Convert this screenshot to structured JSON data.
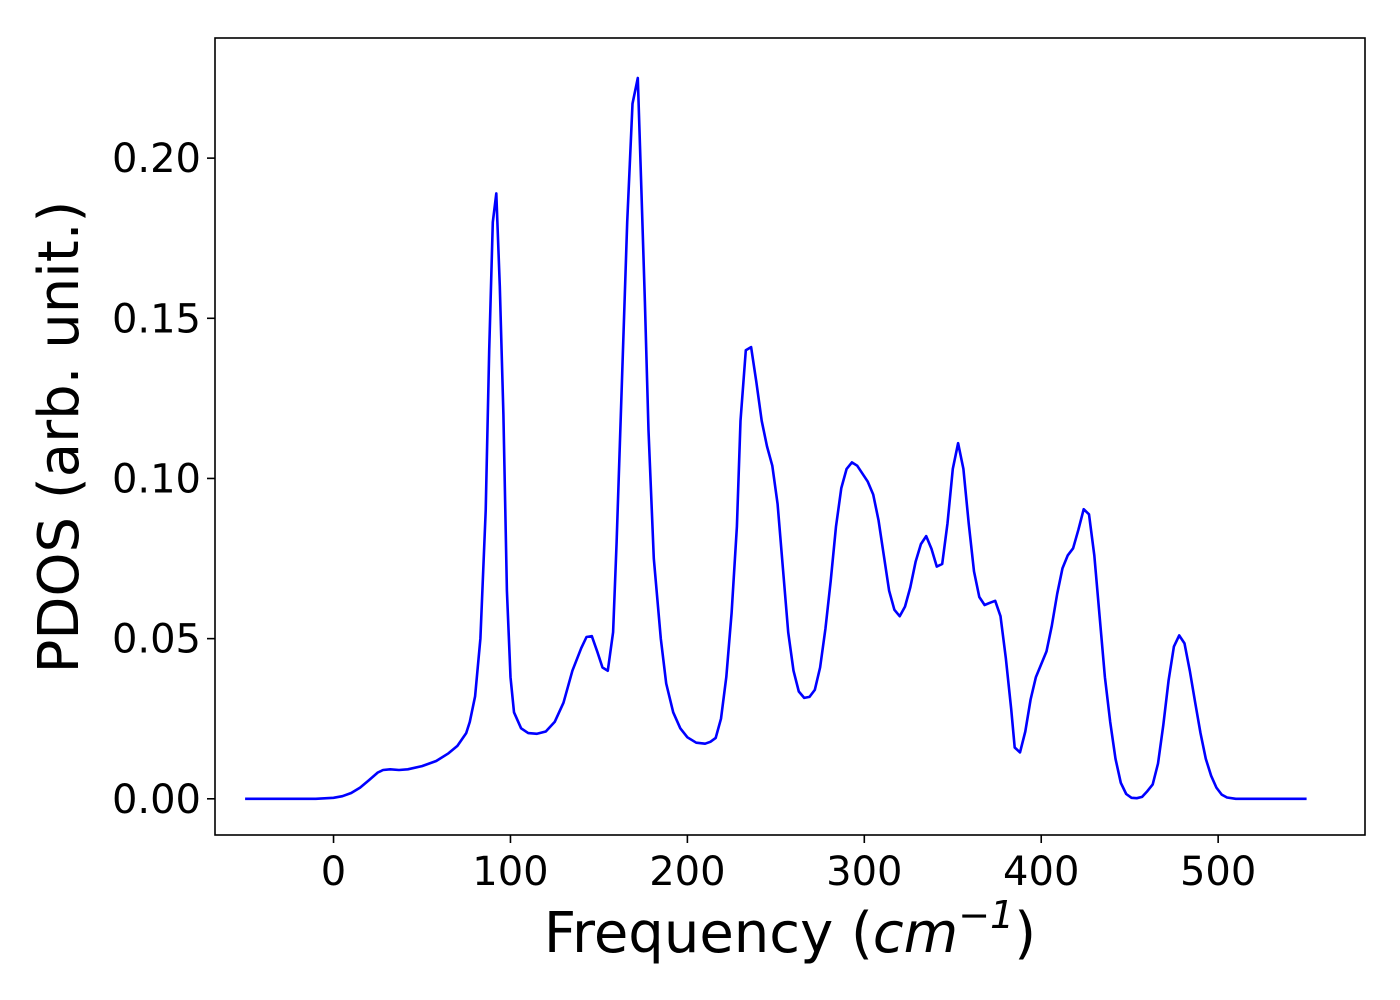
{
  "chart_data": {
    "type": "line",
    "xlabel": "Frequency (cm⁻¹)",
    "xlabel_parts": {
      "prefix": "Frequency (",
      "unit_base": "cm",
      "unit_exp": "−1",
      "suffix": ")"
    },
    "ylabel": "PDOS (arb. unit.)",
    "xlim": [
      -67,
      583
    ],
    "ylim": [
      -0.0113,
      0.2375
    ],
    "x_ticks": [
      0,
      100,
      200,
      300,
      400,
      500
    ],
    "x_tick_labels": [
      "0",
      "100",
      "200",
      "300",
      "400",
      "500"
    ],
    "y_ticks": [
      0.0,
      0.05,
      0.1,
      0.15,
      0.2
    ],
    "y_tick_labels": [
      "0.00",
      "0.05",
      "0.10",
      "0.15",
      "0.20"
    ],
    "grid": false,
    "legend": null,
    "series": [
      {
        "color": "#0000ff",
        "points": [
          [
            -50,
            0.0
          ],
          [
            -40,
            0.0
          ],
          [
            -30,
            0.0
          ],
          [
            -20,
            0.0
          ],
          [
            -10,
            0.0
          ],
          [
            0,
            0.0003
          ],
          [
            5,
            0.0008
          ],
          [
            10,
            0.0018
          ],
          [
            15,
            0.0035
          ],
          [
            20,
            0.0058
          ],
          [
            25,
            0.0082
          ],
          [
            28,
            0.009
          ],
          [
            32,
            0.0092
          ],
          [
            37,
            0.009
          ],
          [
            42,
            0.0092
          ],
          [
            50,
            0.0102
          ],
          [
            58,
            0.0118
          ],
          [
            65,
            0.0142
          ],
          [
            70,
            0.0165
          ],
          [
            75,
            0.0205
          ],
          [
            77,
            0.024
          ],
          [
            80,
            0.032
          ],
          [
            83,
            0.05
          ],
          [
            86,
            0.09
          ],
          [
            88,
            0.14
          ],
          [
            90,
            0.18
          ],
          [
            92,
            0.189
          ],
          [
            94,
            0.16
          ],
          [
            96,
            0.12
          ],
          [
            98,
            0.065
          ],
          [
            100,
            0.038
          ],
          [
            102,
            0.027
          ],
          [
            106,
            0.022
          ],
          [
            110,
            0.0205
          ],
          [
            115,
            0.0203
          ],
          [
            120,
            0.021
          ],
          [
            125,
            0.024
          ],
          [
            130,
            0.03
          ],
          [
            135,
            0.04
          ],
          [
            140,
            0.047
          ],
          [
            143,
            0.0505
          ],
          [
            146,
            0.0508
          ],
          [
            149,
            0.046
          ],
          [
            152,
            0.041
          ],
          [
            155,
            0.04
          ],
          [
            158,
            0.052
          ],
          [
            160,
            0.08
          ],
          [
            163,
            0.13
          ],
          [
            166,
            0.18
          ],
          [
            169,
            0.217
          ],
          [
            172,
            0.225
          ],
          [
            174,
            0.19
          ],
          [
            176,
            0.155
          ],
          [
            178,
            0.115
          ],
          [
            181,
            0.075
          ],
          [
            185,
            0.05
          ],
          [
            188,
            0.036
          ],
          [
            192,
            0.027
          ],
          [
            196,
            0.022
          ],
          [
            200,
            0.0192
          ],
          [
            205,
            0.0175
          ],
          [
            210,
            0.0172
          ],
          [
            213,
            0.0178
          ],
          [
            216,
            0.019
          ],
          [
            219,
            0.025
          ],
          [
            222,
            0.038
          ],
          [
            225,
            0.058
          ],
          [
            228,
            0.085
          ],
          [
            230,
            0.118
          ],
          [
            233,
            0.14
          ],
          [
            236,
            0.141
          ],
          [
            239,
            0.13
          ],
          [
            242,
            0.118
          ],
          [
            245,
            0.11
          ],
          [
            248,
            0.104
          ],
          [
            251,
            0.092
          ],
          [
            254,
            0.072
          ],
          [
            257,
            0.052
          ],
          [
            260,
            0.04
          ],
          [
            263,
            0.0335
          ],
          [
            266,
            0.0315
          ],
          [
            269,
            0.0318
          ],
          [
            272,
            0.034
          ],
          [
            275,
            0.041
          ],
          [
            278,
            0.053
          ],
          [
            281,
            0.068
          ],
          [
            284,
            0.085
          ],
          [
            287,
            0.097
          ],
          [
            290,
            0.103
          ],
          [
            293,
            0.105
          ],
          [
            296,
            0.104
          ],
          [
            299,
            0.1015
          ],
          [
            302,
            0.099
          ],
          [
            305,
            0.095
          ],
          [
            308,
            0.087
          ],
          [
            311,
            0.076
          ],
          [
            314,
            0.065
          ],
          [
            317,
            0.059
          ],
          [
            320,
            0.057
          ],
          [
            323,
            0.06
          ],
          [
            326,
            0.066
          ],
          [
            329,
            0.074
          ],
          [
            332,
            0.0795
          ],
          [
            335,
            0.082
          ],
          [
            338,
            0.078
          ],
          [
            341,
            0.0725
          ],
          [
            344,
            0.0733
          ],
          [
            347,
            0.086
          ],
          [
            350,
            0.103
          ],
          [
            353,
            0.111
          ],
          [
            356,
            0.103
          ],
          [
            359,
            0.086
          ],
          [
            362,
            0.071
          ],
          [
            365,
            0.063
          ],
          [
            368,
            0.0605
          ],
          [
            371,
            0.0612
          ],
          [
            374,
            0.0618
          ],
          [
            377,
            0.057
          ],
          [
            380,
            0.044
          ],
          [
            383,
            0.028
          ],
          [
            385,
            0.016
          ],
          [
            388,
            0.0145
          ],
          [
            391,
            0.021
          ],
          [
            394,
            0.031
          ],
          [
            397,
            0.038
          ],
          [
            400,
            0.042
          ],
          [
            403,
            0.046
          ],
          [
            406,
            0.054
          ],
          [
            409,
            0.064
          ],
          [
            412,
            0.072
          ],
          [
            415,
            0.076
          ],
          [
            418,
            0.0782
          ],
          [
            421,
            0.084
          ],
          [
            424,
            0.0904
          ],
          [
            427,
            0.0888
          ],
          [
            430,
            0.076
          ],
          [
            433,
            0.057
          ],
          [
            436,
            0.038
          ],
          [
            439,
            0.024
          ],
          [
            442,
            0.0125
          ],
          [
            445,
            0.005
          ],
          [
            448,
            0.0015
          ],
          [
            451,
            0.0003
          ],
          [
            454,
            0.0002
          ],
          [
            457,
            0.0006
          ],
          [
            460,
            0.0024
          ],
          [
            463,
            0.0045
          ],
          [
            466,
            0.011
          ],
          [
            469,
            0.023
          ],
          [
            472,
            0.037
          ],
          [
            475,
            0.0475
          ],
          [
            478,
            0.051
          ],
          [
            481,
            0.0485
          ],
          [
            484,
            0.04
          ],
          [
            487,
            0.03
          ],
          [
            490,
            0.0205
          ],
          [
            493,
            0.0125
          ],
          [
            496,
            0.0072
          ],
          [
            499,
            0.0035
          ],
          [
            502,
            0.0013
          ],
          [
            505,
            0.0004
          ],
          [
            510,
            0.0
          ],
          [
            520,
            0.0
          ],
          [
            530,
            0.0
          ],
          [
            540,
            0.0
          ],
          [
            550,
            0.0
          ]
        ]
      }
    ]
  }
}
